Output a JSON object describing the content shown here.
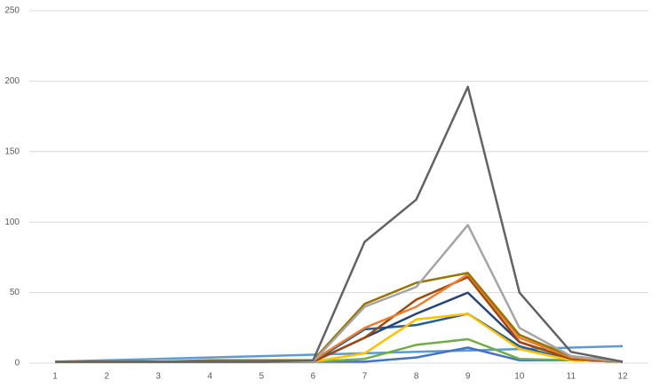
{
  "chart_data": {
    "type": "line",
    "categories": [
      "1",
      "2",
      "3",
      "4",
      "5",
      "6",
      "7",
      "8",
      "9",
      "10",
      "11",
      "12"
    ],
    "series": [
      {
        "color": "#5b9bd5",
        "values": [
          1,
          2,
          3,
          4,
          5,
          6,
          7,
          8,
          9,
          10,
          11,
          12
        ]
      },
      {
        "color": "#4472c4",
        "values": [
          1,
          1,
          1,
          1,
          1,
          1,
          1,
          4,
          11,
          2,
          2,
          1
        ]
      },
      {
        "color": "#70ad47",
        "values": [
          1,
          1,
          1,
          1,
          1,
          1,
          3,
          13,
          17,
          3,
          2,
          1
        ]
      },
      {
        "color": "#255e91",
        "values": [
          1,
          1,
          1,
          1,
          1,
          1,
          24,
          27,
          35,
          12,
          2,
          1
        ]
      },
      {
        "color": "#ffc000",
        "values": [
          1,
          1,
          1,
          1,
          1,
          1,
          7,
          31,
          35,
          10,
          2,
          1
        ]
      },
      {
        "color": "#264478",
        "values": [
          1,
          1,
          1,
          1,
          1,
          1,
          18,
          35,
          50,
          15,
          3,
          1
        ]
      },
      {
        "color": "#9e480e",
        "values": [
          1,
          1,
          1,
          1,
          1,
          1,
          18,
          45,
          61,
          15,
          3,
          1
        ]
      },
      {
        "color": "#ed7d31",
        "values": [
          1,
          1,
          1,
          1,
          1,
          2,
          25,
          40,
          63,
          18,
          4,
          1
        ]
      },
      {
        "color": "#997300",
        "values": [
          1,
          1,
          1,
          2,
          2,
          2,
          42,
          57,
          64,
          20,
          5,
          1
        ]
      },
      {
        "color": "#a5a5a5",
        "values": [
          1,
          1,
          1,
          1,
          1,
          1,
          40,
          54,
          98,
          25,
          5,
          1
        ]
      },
      {
        "color": "#636363",
        "values": [
          1,
          1,
          1,
          1,
          1,
          2,
          86,
          116,
          196,
          50,
          8,
          1
        ]
      }
    ],
    "ylim": [
      0,
      250
    ],
    "yticks": [
      0,
      50,
      100,
      150,
      200,
      250
    ],
    "grid": true
  }
}
